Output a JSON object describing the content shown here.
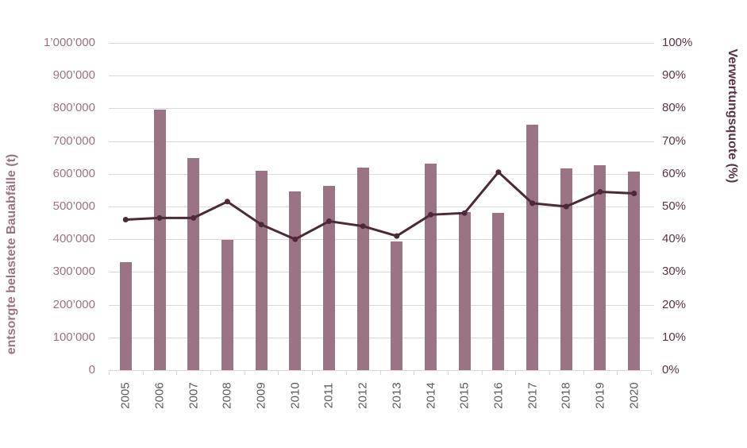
{
  "chart_data": {
    "type": "bar",
    "subtype": "bar+line dual axis",
    "title": "",
    "categories": [
      "2005",
      "2006",
      "2007",
      "2008",
      "2009",
      "2010",
      "2011",
      "2012",
      "2013",
      "2014",
      "2015",
      "2016",
      "2017",
      "2018",
      "2019",
      "2020"
    ],
    "series": [
      {
        "name": "entsorgte belastete Bauabfälle (t)",
        "type": "bar",
        "axis": "left",
        "values": [
          330000,
          795000,
          648000,
          397000,
          610000,
          546000,
          564000,
          620000,
          392000,
          630000,
          482000,
          480000,
          750000,
          617000,
          627000,
          607000
        ]
      },
      {
        "name": "Verwertungsquote (%)",
        "type": "line",
        "axis": "right",
        "values": [
          46,
          46.5,
          46.5,
          51.5,
          44.5,
          40,
          45.5,
          44,
          41,
          47.5,
          48,
          60.5,
          51,
          50,
          54.5,
          54
        ]
      }
    ],
    "ylabel_left": "entsorgte belastete Bauabfälle (t)",
    "ylabel_right": "Verwertungsquote (%)",
    "xlabel": "",
    "y_left_axis": {
      "min": 0,
      "max": 1000000,
      "step": 100000,
      "tick_labels": [
        "0",
        "100’000",
        "200’000",
        "300’000",
        "400’000",
        "500’000",
        "600’000",
        "700’000",
        "800’000",
        "900’000",
        "1’000’000"
      ]
    },
    "y_right_axis": {
      "min": 0,
      "max": 100,
      "step": 10,
      "tick_labels": [
        "0%",
        "10%",
        "20%",
        "30%",
        "40%",
        "50%",
        "60%",
        "70%",
        "80%",
        "90%",
        "100%"
      ]
    },
    "grid": true,
    "legend": "none"
  },
  "colors": {
    "bar": "#9a7384",
    "line": "#4c2938",
    "left_axis_text": "#9b7284",
    "right_axis_text": "#5a3246",
    "x_axis_text": "#595959",
    "gridline": "#d9d9d9"
  }
}
